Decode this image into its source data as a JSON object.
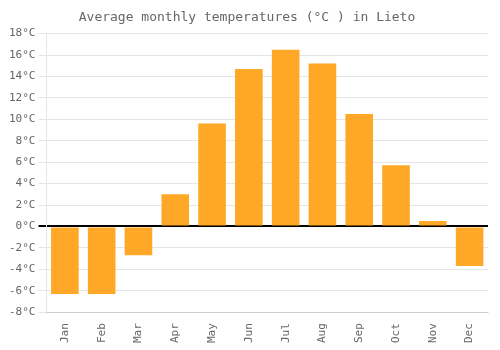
{
  "chart_data": {
    "type": "bar",
    "title": "Average monthly temperatures (°C ) in Lieto",
    "categories": [
      "Jan",
      "Feb",
      "Mar",
      "Apr",
      "May",
      "Jun",
      "Jul",
      "Aug",
      "Sep",
      "Oct",
      "Nov",
      "Dec"
    ],
    "values": [
      -6.3,
      -6.3,
      -2.7,
      3.0,
      9.6,
      14.7,
      16.5,
      15.2,
      10.5,
      5.7,
      0.5,
      -3.7
    ],
    "color": "#FFA726",
    "ylim": [
      -8,
      18
    ],
    "yticks": [
      {
        "value": -8,
        "label": "-8°C"
      },
      {
        "value": -6,
        "label": "-6°C"
      },
      {
        "value": -4,
        "label": "-4°C"
      },
      {
        "value": -2,
        "label": "-2°C"
      },
      {
        "value": 0,
        "label": "0°C"
      },
      {
        "value": 2,
        "label": "2°C"
      },
      {
        "value": 4,
        "label": "4°C"
      },
      {
        "value": 6,
        "label": "6°C"
      },
      {
        "value": 8,
        "label": "8°C"
      },
      {
        "value": 10,
        "label": "10°C"
      },
      {
        "value": 12,
        "label": "12°C"
      },
      {
        "value": 14,
        "label": "14°C"
      },
      {
        "value": 16,
        "label": "16°C"
      },
      {
        "value": 18,
        "label": "18°C"
      }
    ],
    "grid": true
  }
}
